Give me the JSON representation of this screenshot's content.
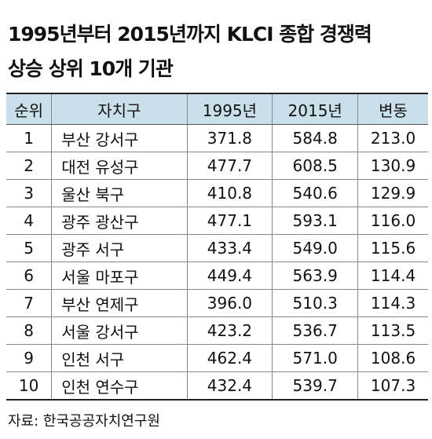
{
  "header": {
    "title": [
      "1995년부터 2015년까지 KLCI 종합 경쟁력",
      "상승 상위 10개 기관"
    ]
  },
  "table": {
    "columns": [
      "순위",
      "자치구",
      "1995년",
      "2015년",
      "변동"
    ],
    "rows": [
      [
        "1",
        "부산 강서구",
        "371.8",
        "584.8",
        "213.0"
      ],
      [
        "2",
        "대전 유성구",
        "477.7",
        "608.5",
        "130.9"
      ],
      [
        "3",
        "울산 북구",
        "410.8",
        "540.6",
        "129.9"
      ],
      [
        "4",
        "광주 광산구",
        "477.1",
        "593.1",
        "116.0"
      ],
      [
        "5",
        "광주 서구",
        "433.4",
        "549.0",
        "115.6"
      ],
      [
        "6",
        "서울 마포구",
        "449.4",
        "563.9",
        "114.4"
      ],
      [
        "7",
        "부산 연제구",
        "396.0",
        "510.3",
        "114.3"
      ],
      [
        "8",
        "서울 강서구",
        "423.2",
        "536.7",
        "113.5"
      ],
      [
        "9",
        "인천 서구",
        "462.4",
        "571.0",
        "108.6"
      ],
      [
        "10",
        "인천 연수구",
        "432.4",
        "539.7",
        "107.3"
      ]
    ]
  },
  "source": "자료: 한국공공자치연구원"
}
